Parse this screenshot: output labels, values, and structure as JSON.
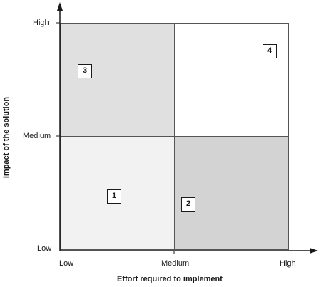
{
  "quadrants": {
    "top_left": {
      "label": "3",
      "color": "#e0e0e0"
    },
    "top_right": {
      "label": "4",
      "color": "#ffffff"
    },
    "bottom_left": {
      "label": "1",
      "color": "#f2f2f2"
    },
    "bottom_right": {
      "label": "2",
      "color": "#d3d3d3"
    }
  },
  "y_axis": {
    "title": "Impact of the solution",
    "ticks": {
      "high": "High",
      "medium": "Medium",
      "low": "Low"
    }
  },
  "x_axis": {
    "title": "Effort required to implement",
    "ticks": {
      "low": "Low",
      "medium": "Medium",
      "high": "High"
    }
  },
  "colors": {
    "axis": "#1a1a1a",
    "border": "#555555"
  }
}
